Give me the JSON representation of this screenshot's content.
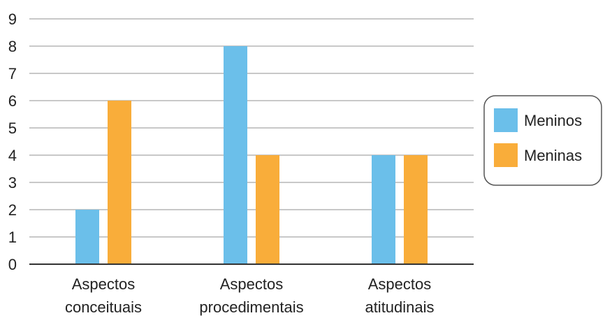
{
  "chart_data": {
    "type": "bar",
    "categories": [
      [
        "Aspectos",
        "conceituais"
      ],
      [
        "Aspectos",
        "procedimentais"
      ],
      [
        "Aspectos",
        "atitudinais"
      ]
    ],
    "series": [
      {
        "name": "Meninos",
        "values": [
          2,
          8,
          4
        ],
        "color": "#6bbfea"
      },
      {
        "name": "Meninas",
        "values": [
          6,
          4,
          4
        ],
        "color": "#f9ad3a"
      }
    ],
    "yticks": [
      "0",
      "1",
      "2",
      "3",
      "4",
      "5",
      "6",
      "7",
      "8",
      "9"
    ],
    "ylim": [
      0,
      9
    ],
    "grid": true,
    "legend_position": "right"
  }
}
